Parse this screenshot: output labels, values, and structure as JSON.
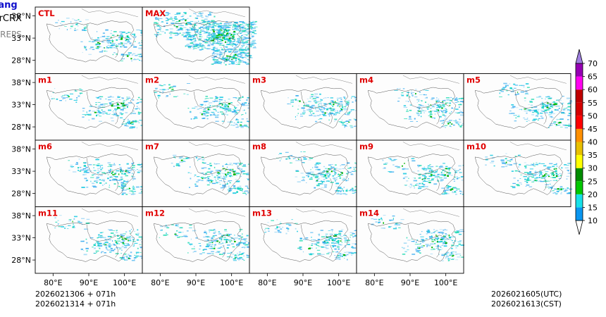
{
  "header": {
    "region": "Xizang",
    "variable": "radarCRX",
    "system": "CMA-REPS"
  },
  "panels": [
    {
      "id": "CTL",
      "color": "#e00000"
    },
    {
      "id": "MAX",
      "color": "#e00000"
    },
    {
      "id": "m1"
    },
    {
      "id": "m2"
    },
    {
      "id": "m3"
    },
    {
      "id": "m4"
    },
    {
      "id": "m5"
    },
    {
      "id": "m6"
    },
    {
      "id": "m7"
    },
    {
      "id": "m8"
    },
    {
      "id": "m9"
    },
    {
      "id": "m10"
    },
    {
      "id": "m11"
    },
    {
      "id": "m12"
    },
    {
      "id": "m13"
    },
    {
      "id": "m14"
    }
  ],
  "axes": {
    "lat_labels": [
      "38°N",
      "33°N",
      "28°N"
    ],
    "lon_labels": [
      "80°E",
      "90°E",
      "100°E"
    ]
  },
  "colorbar": {
    "labels": [
      "10",
      "15",
      "20",
      "25",
      "30",
      "35",
      "40",
      "45",
      "50",
      "55",
      "60",
      "65",
      "70"
    ],
    "colors": [
      "#ffffff",
      "#0a96f0",
      "#17e0e8",
      "#00c800",
      "#008c00",
      "#ffff00",
      "#e8c000",
      "#ff9000",
      "#ff0000",
      "#d60000",
      "#c00000",
      "#ff00f0",
      "#9600b4",
      "#a080e0"
    ]
  },
  "footer": {
    "init_utc": "2026021306  +  071h",
    "init_cst": "2026021314  +  071h",
    "valid_utc": "2026021605(UTC)",
    "valid_cst": "2026021613(CST)"
  }
}
